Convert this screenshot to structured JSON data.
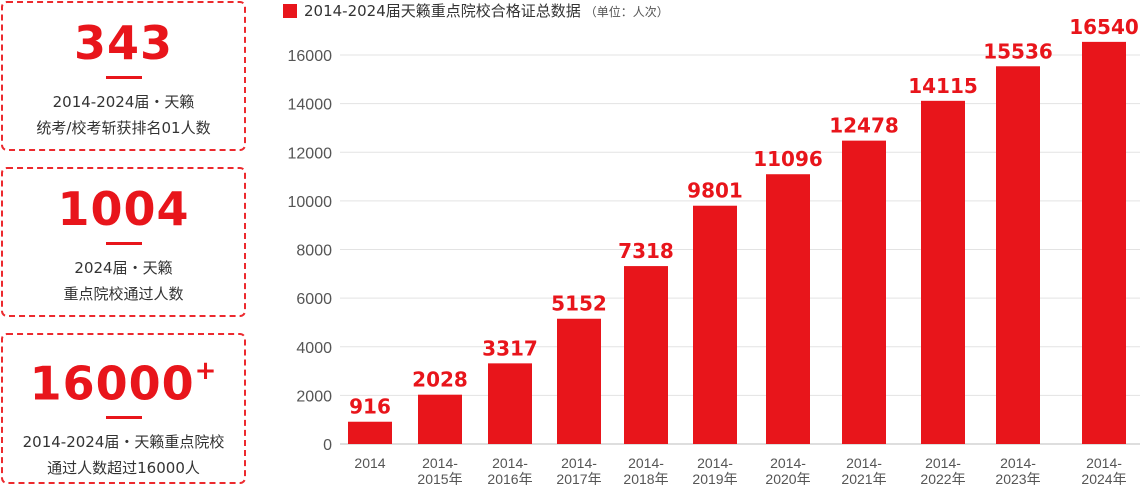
{
  "cards": [
    {
      "number": "343",
      "sup": "",
      "line1": "2014-2024届・天籁",
      "line2": "统考/校考斩获排名01人数"
    },
    {
      "number": "1004",
      "sup": "",
      "line1": "2024届・天籁",
      "line2": "重点院校通过人数"
    },
    {
      "number": "16000",
      "sup": "+",
      "line1": "2014-2024届・天籁重点院校",
      "line2": "通过人数超过16000人"
    }
  ],
  "colors": {
    "accent": "#e8151b",
    "grid": "#e3e3e3",
    "text": "#333333"
  },
  "chart_data": {
    "type": "bar",
    "title": "2014-2024届天籁重点院校合格证总数据",
    "unit": "（单位：人次）",
    "xlabel": "",
    "ylabel": "",
    "ylim": [
      0,
      16000
    ],
    "yticks": [
      0,
      2000,
      4000,
      6000,
      8000,
      10000,
      12000,
      14000,
      16000
    ],
    "grid": true,
    "legend": "top-left",
    "categories": [
      [
        "2014"
      ],
      [
        "2014-",
        "2015年"
      ],
      [
        "2014-",
        "2016年"
      ],
      [
        "2014-",
        "2017年"
      ],
      [
        "2014-",
        "2018年"
      ],
      [
        "2014-",
        "2019年"
      ],
      [
        "2014-",
        "2020年"
      ],
      [
        "2014-",
        "2021年"
      ],
      [
        "2014-",
        "2022年"
      ],
      [
        "2014-",
        "2023年"
      ],
      [
        "2014-",
        "2024年"
      ]
    ],
    "values": [
      916,
      2028,
      3317,
      5152,
      7318,
      9801,
      11096,
      12478,
      14115,
      15536,
      16540
    ]
  }
}
